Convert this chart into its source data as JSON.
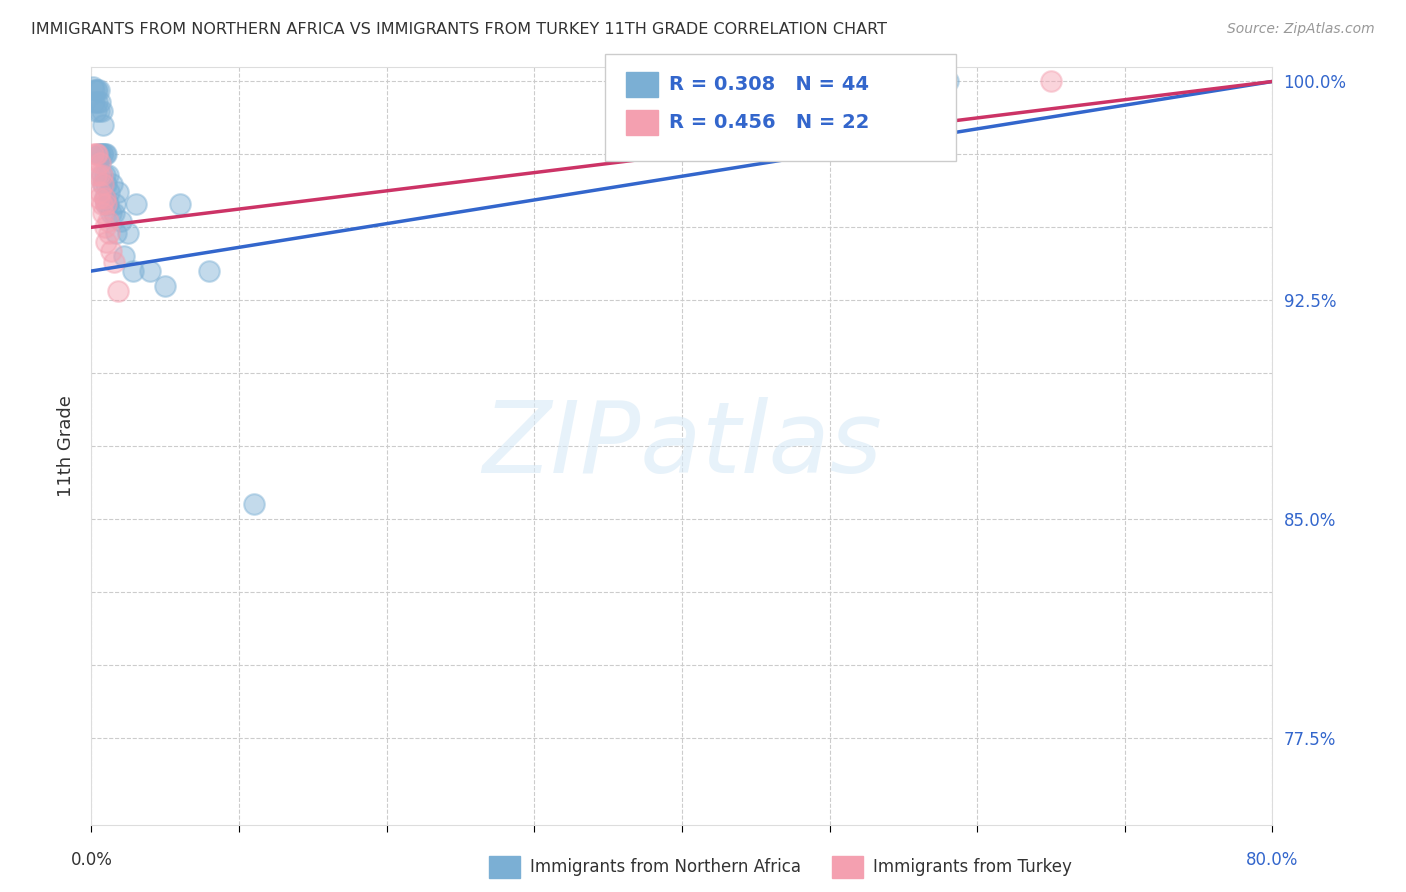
{
  "title": "IMMIGRANTS FROM NORTHERN AFRICA VS IMMIGRANTS FROM TURKEY 11TH GRADE CORRELATION CHART",
  "source": "Source: ZipAtlas.com",
  "ylabel": "11th Grade",
  "xlim": [
    0.0,
    0.8
  ],
  "ylim": [
    0.745,
    1.005
  ],
  "ytick_positions": [
    0.775,
    0.8,
    0.825,
    0.85,
    0.875,
    0.9,
    0.925,
    0.95,
    0.975,
    1.0
  ],
  "ytick_labels_right": [
    "77.5%",
    "",
    "",
    "85.0%",
    "",
    "",
    "92.5%",
    "",
    "",
    "100.0%"
  ],
  "xtick_positions": [
    0.0,
    0.1,
    0.2,
    0.3,
    0.4,
    0.5,
    0.6,
    0.7,
    0.8
  ],
  "grid_color": "#cccccc",
  "background_color": "#ffffff",
  "blue_scatter_color": "#7bafd4",
  "pink_scatter_color": "#f4a0b0",
  "blue_line_color": "#3366cc",
  "pink_line_color": "#cc3366",
  "axis_label_color": "#3366cc",
  "text_color": "#333333",
  "source_color": "#999999",
  "watermark_color": "#d8eaf7",
  "watermark_text": "ZIPatlas",
  "legend_R_blue": "R = 0.308",
  "legend_N_blue": "N = 44",
  "legend_R_pink": "R = 0.456",
  "legend_N_pink": "N = 22",
  "blue_scatter_x": [
    0.001,
    0.002,
    0.002,
    0.003,
    0.003,
    0.004,
    0.004,
    0.005,
    0.005,
    0.005,
    0.006,
    0.006,
    0.007,
    0.007,
    0.007,
    0.008,
    0.008,
    0.008,
    0.009,
    0.009,
    0.009,
    0.01,
    0.01,
    0.01,
    0.011,
    0.011,
    0.012,
    0.013,
    0.014,
    0.015,
    0.016,
    0.017,
    0.018,
    0.02,
    0.022,
    0.025,
    0.028,
    0.03,
    0.04,
    0.05,
    0.06,
    0.08,
    0.11,
    0.58
  ],
  "blue_scatter_y": [
    0.998,
    0.997,
    0.993,
    0.997,
    0.99,
    0.997,
    0.993,
    0.997,
    0.99,
    0.975,
    0.993,
    0.975,
    0.99,
    0.975,
    0.968,
    0.985,
    0.975,
    0.965,
    0.975,
    0.968,
    0.96,
    0.975,
    0.965,
    0.958,
    0.968,
    0.958,
    0.962,
    0.955,
    0.965,
    0.955,
    0.958,
    0.948,
    0.962,
    0.952,
    0.94,
    0.948,
    0.935,
    0.958,
    0.935,
    0.93,
    0.958,
    0.935,
    0.855,
    1.0
  ],
  "pink_scatter_x": [
    0.001,
    0.003,
    0.003,
    0.004,
    0.005,
    0.005,
    0.006,
    0.006,
    0.007,
    0.007,
    0.008,
    0.008,
    0.009,
    0.009,
    0.01,
    0.01,
    0.011,
    0.012,
    0.013,
    0.015,
    0.018,
    0.65
  ],
  "pink_scatter_y": [
    0.975,
    0.975,
    0.968,
    0.975,
    0.968,
    0.96,
    0.972,
    0.962,
    0.968,
    0.958,
    0.965,
    0.955,
    0.96,
    0.95,
    0.958,
    0.945,
    0.952,
    0.948,
    0.942,
    0.938,
    0.928,
    1.0
  ],
  "blue_line_x0": 0.0,
  "blue_line_y0": 0.935,
  "blue_line_x1": 0.8,
  "blue_line_y1": 1.0,
  "pink_line_x0": 0.0,
  "pink_line_y0": 0.95,
  "pink_line_x1": 0.8,
  "pink_line_y1": 1.0
}
